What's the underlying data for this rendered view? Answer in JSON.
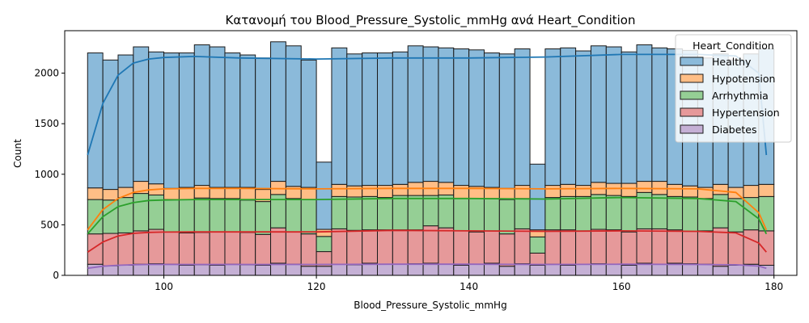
{
  "chart_data": {
    "type": "bar",
    "subtype": "stacked-histogram-with-kde",
    "title": "Κατανομή του Blood_Pressure_Systolic_mmHg ανά Heart_Condition",
    "xlabel": "Blood_Pressure_Systolic_mmHg",
    "ylabel": "Count",
    "xlim": [
      87,
      183
    ],
    "ylim": [
      0,
      2420
    ],
    "xticks": [
      100,
      120,
      140,
      160,
      180
    ],
    "yticks": [
      0,
      500,
      1000,
      1500,
      2000
    ],
    "grid": false,
    "legend": {
      "title": "Heart_Condition",
      "placement": "top-right"
    },
    "bins": [
      [
        90,
        92
      ],
      [
        92,
        94
      ],
      [
        94,
        96
      ],
      [
        96,
        98
      ],
      [
        98,
        100
      ],
      [
        100,
        102
      ],
      [
        102,
        104
      ],
      [
        104,
        106
      ],
      [
        106,
        108
      ],
      [
        108,
        110
      ],
      [
        110,
        112
      ],
      [
        112,
        114
      ],
      [
        114,
        116
      ],
      [
        116,
        118
      ],
      [
        118,
        120
      ],
      [
        120,
        122
      ],
      [
        122,
        124
      ],
      [
        124,
        126
      ],
      [
        126,
        128
      ],
      [
        128,
        130
      ],
      [
        130,
        132
      ],
      [
        132,
        134
      ],
      [
        134,
        136
      ],
      [
        136,
        138
      ],
      [
        138,
        140
      ],
      [
        140,
        142
      ],
      [
        142,
        144
      ],
      [
        144,
        146
      ],
      [
        146,
        148
      ],
      [
        148,
        150
      ],
      [
        150,
        152
      ],
      [
        152,
        154
      ],
      [
        154,
        156
      ],
      [
        156,
        158
      ],
      [
        158,
        160
      ],
      [
        160,
        162
      ],
      [
        162,
        164
      ],
      [
        164,
        166
      ],
      [
        166,
        168
      ],
      [
        168,
        170
      ],
      [
        170,
        172
      ],
      [
        172,
        174
      ],
      [
        174,
        176
      ],
      [
        176,
        178
      ],
      [
        178,
        180
      ]
    ],
    "series": [
      {
        "name": "Diabetes",
        "color": "#c5b0d5",
        "values": [
          110,
          95,
          100,
          110,
          115,
          110,
          100,
          105,
          100,
          110,
          105,
          100,
          120,
          110,
          90,
          90,
          110,
          105,
          120,
          110,
          110,
          115,
          120,
          110,
          100,
          110,
          120,
          90,
          115,
          100,
          110,
          100,
          110,
          115,
          110,
          100,
          120,
          110,
          120,
          115,
          110,
          90,
          100,
          110,
          100
        ]
      },
      {
        "name": "Hypertension",
        "color": "#e6999a",
        "values": [
          300,
          320,
          320,
          330,
          340,
          320,
          320,
          320,
          330,
          320,
          320,
          305,
          350,
          320,
          320,
          145,
          350,
          340,
          330,
          340,
          340,
          335,
          370,
          360,
          340,
          320,
          320,
          320,
          345,
          120,
          340,
          350,
          330,
          340,
          340,
          330,
          340,
          350,
          330,
          320,
          330,
          380,
          330,
          340,
          340
        ]
      },
      {
        "name": "Arrhythmia",
        "color": "#95cf95",
        "values": [
          340,
          330,
          350,
          370,
          340,
          320,
          330,
          340,
          330,
          330,
          320,
          325,
          330,
          330,
          340,
          150,
          320,
          330,
          330,
          320,
          340,
          340,
          300,
          325,
          320,
          330,
          320,
          340,
          300,
          160,
          320,
          330,
          340,
          345,
          340,
          350,
          360,
          340,
          330,
          340,
          320,
          330,
          330,
          320,
          340
        ]
      },
      {
        "name": "Hypotension",
        "color": "#ffbe86",
        "values": [
          115,
          105,
          100,
          120,
          110,
          110,
          120,
          125,
          110,
          110,
          125,
          120,
          130,
          120,
          120,
          70,
          120,
          110,
          110,
          120,
          110,
          130,
          140,
          125,
          130,
          120,
          110,
          110,
          130,
          70,
          120,
          120,
          110,
          120,
          120,
          130,
          110,
          130,
          120,
          110,
          110,
          100,
          110,
          120,
          120
        ]
      },
      {
        "name": "Healthy",
        "color": "#8bbada",
        "values": [
          1335,
          1280,
          1310,
          1330,
          1305,
          1340,
          1330,
          1390,
          1390,
          1330,
          1310,
          1300,
          1380,
          1390,
          1260,
          665,
          1350,
          1305,
          1310,
          1310,
          1310,
          1350,
          1330,
          1330,
          1350,
          1350,
          1330,
          1330,
          1350,
          650,
          1350,
          1350,
          1330,
          1350,
          1350,
          1300,
          1350,
          1320,
          1340,
          1340,
          1280,
          1290,
          1260,
          1300,
          1340
        ]
      }
    ],
    "legend_order": [
      "Healthy",
      "Hypotension",
      "Arrhythmia",
      "Hypertension",
      "Diabetes"
    ],
    "kde": [
      {
        "name": "Healthy",
        "color": "#1f77b4",
        "x": [
          90,
          92,
          94,
          96,
          98,
          100,
          104,
          110,
          120,
          130,
          140,
          150,
          160,
          170,
          175,
          178,
          179
        ],
        "y": [
          1190,
          1700,
          1980,
          2100,
          2140,
          2155,
          2165,
          2150,
          2140,
          2150,
          2150,
          2160,
          2185,
          2185,
          2170,
          2000,
          1190
        ]
      },
      {
        "name": "Hypotension",
        "color": "#ff7f0e",
        "x": [
          90,
          92,
          94,
          96,
          98,
          100,
          104,
          110,
          120,
          130,
          140,
          150,
          160,
          170,
          175,
          178,
          179
        ],
        "y": [
          450,
          650,
          760,
          820,
          845,
          855,
          860,
          860,
          855,
          860,
          860,
          855,
          860,
          855,
          820,
          620,
          450
        ]
      },
      {
        "name": "Arrhythmia",
        "color": "#2ca02c",
        "x": [
          90,
          92,
          94,
          96,
          98,
          100,
          104,
          110,
          120,
          130,
          140,
          150,
          160,
          170,
          175,
          178,
          179
        ],
        "y": [
          410,
          580,
          680,
          720,
          740,
          745,
          750,
          750,
          750,
          760,
          760,
          755,
          770,
          760,
          730,
          560,
          410
        ]
      },
      {
        "name": "Hypertension",
        "color": "#d62728",
        "x": [
          90,
          92,
          94,
          96,
          98,
          100,
          104,
          110,
          120,
          130,
          140,
          150,
          160,
          170,
          175,
          178,
          179
        ],
        "y": [
          230,
          330,
          390,
          415,
          425,
          428,
          430,
          430,
          430,
          445,
          440,
          435,
          440,
          435,
          420,
          320,
          230
        ]
      },
      {
        "name": "Diabetes",
        "color": "#9467bd",
        "x": [
          90,
          92,
          94,
          96,
          98,
          100,
          104,
          110,
          120,
          130,
          140,
          150,
          160,
          170,
          175,
          178,
          179
        ],
        "y": [
          70,
          90,
          100,
          105,
          108,
          108,
          108,
          108,
          108,
          110,
          110,
          108,
          110,
          108,
          105,
          92,
          70
        ]
      }
    ]
  }
}
